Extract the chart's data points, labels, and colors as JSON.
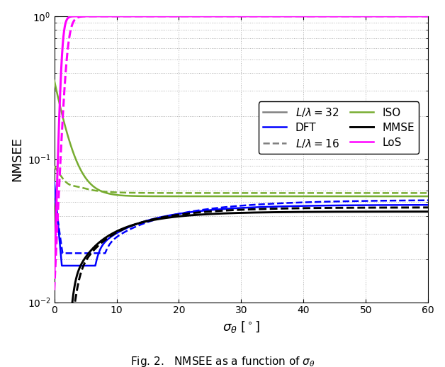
{
  "xlabel": "$\\sigma_\\theta$ $[^\\circ]$",
  "ylabel": "NMSEE",
  "caption": "Fig. 2.   NMSEE as a function of $\\sigma_\\theta$",
  "xlim": [
    0,
    60
  ],
  "xticks": [
    0,
    10,
    20,
    30,
    40,
    50,
    60
  ],
  "ylim": [
    0.01,
    1.0
  ],
  "colors": {
    "MMSE": "#000000",
    "DFT": "#0000FF",
    "ISO": "#77AC30",
    "LoS": "#FF00FF",
    "gray": "#808080"
  },
  "figsize": [
    6.28,
    5.18
  ],
  "dpi": 100,
  "lw": 1.8
}
